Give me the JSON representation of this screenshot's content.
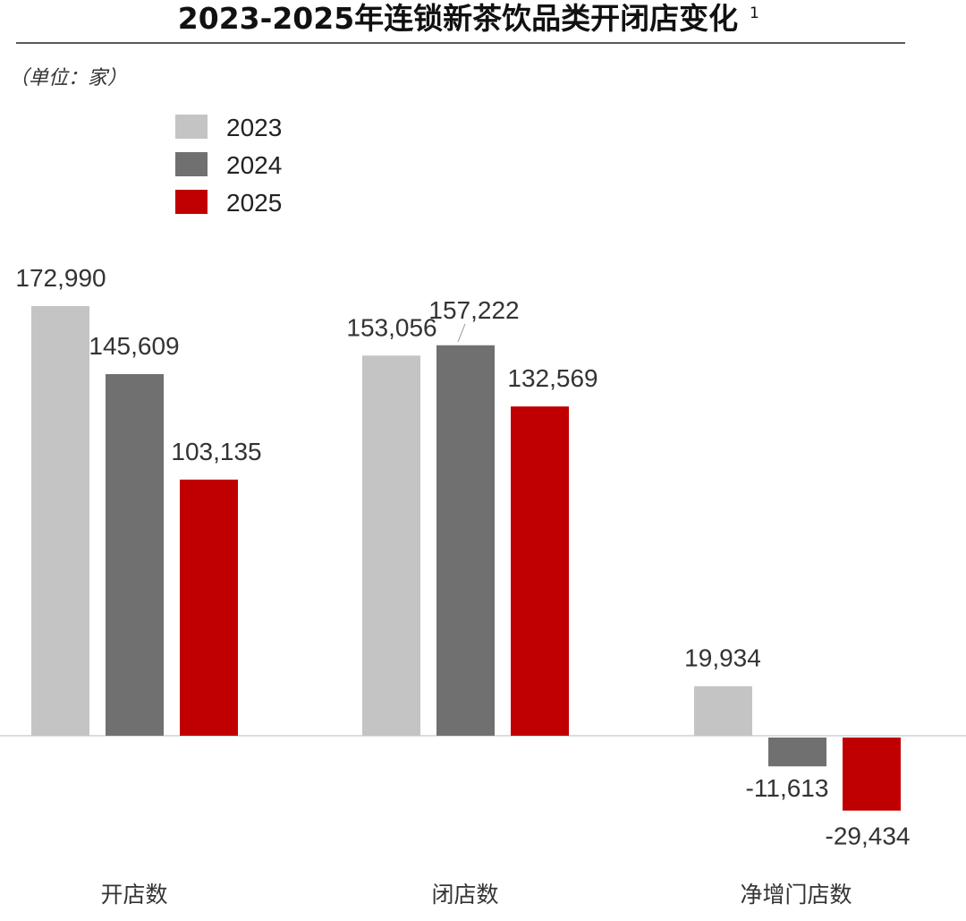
{
  "chart_data": {
    "type": "bar",
    "title": "2023-2025年连锁新茶饮品类开闭店变化",
    "title_superscript": "1",
    "unit_label": "（单位：家）",
    "categories": [
      "开店数",
      "闭店数",
      "净增门店数"
    ],
    "series": [
      {
        "name": "2023",
        "color": "#c4c4c4",
        "values": [
          172990,
          153056,
          19934
        ]
      },
      {
        "name": "2024",
        "color": "#707070",
        "values": [
          145609,
          157222,
          -11613
        ]
      },
      {
        "name": "2025",
        "color": "#c00000",
        "values": [
          103135,
          132569,
          -29434
        ]
      }
    ],
    "value_labels": [
      [
        "172,990",
        "153,056",
        "19,934"
      ],
      [
        "145,609",
        "157,222",
        "-11,613"
      ],
      [
        "103,135",
        "132,569",
        "-29,434"
      ]
    ],
    "ylim": [
      -35000,
      190000
    ],
    "grid": false,
    "legend_position": "top-left"
  }
}
